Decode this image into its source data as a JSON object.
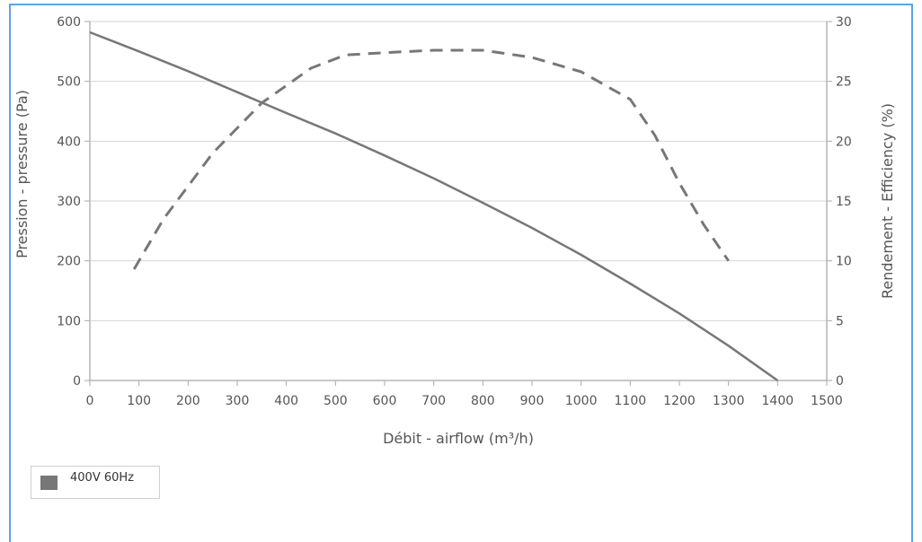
{
  "chart_data": {
    "type": "line",
    "xlabel": "Débit - airflow (m³/h)",
    "ylabel_left": "Pression - pressure (Pa)",
    "ylabel_right": "Rendement - Efficiency (%)",
    "xlim": [
      0,
      1500
    ],
    "ylim_left": [
      0,
      600
    ],
    "ylim_right": [
      0,
      30
    ],
    "x_ticks": [
      "0",
      "100",
      "200",
      "300",
      "400",
      "500",
      "600",
      "700",
      "800",
      "900",
      "1000",
      "1100",
      "1200",
      "1300",
      "1400",
      "1500"
    ],
    "y_left_ticks": [
      "0",
      "100",
      "200",
      "300",
      "400",
      "500",
      "600"
    ],
    "y_right_ticks": [
      "0",
      "5",
      "10",
      "15",
      "20",
      "25",
      "30"
    ],
    "grid": "horizontal",
    "legend_position": "bottom-left",
    "series": [
      {
        "name": "400V 60Hz",
        "axis": "left",
        "style": "solid",
        "color": "#777777",
        "x": [
          0,
          100,
          200,
          300,
          400,
          500,
          600,
          700,
          800,
          900,
          1000,
          1100,
          1200,
          1300,
          1400
        ],
        "y": [
          582,
          550,
          517,
          482,
          447,
          413,
          376,
          338,
          297,
          255,
          210,
          162,
          112,
          58,
          0
        ]
      },
      {
        "axis": "right",
        "style": "dashed",
        "color": "#777777",
        "x": [
          90,
          150,
          250,
          350,
          450,
          520,
          600,
          700,
          800,
          900,
          1000,
          1100,
          1150,
          1200,
          1250,
          1300
        ],
        "y": [
          9.3,
          13.5,
          19.0,
          23.2,
          26.1,
          27.2,
          27.4,
          27.6,
          27.6,
          27.0,
          25.8,
          23.5,
          20.5,
          16.5,
          13.0,
          10.0
        ]
      }
    ]
  }
}
